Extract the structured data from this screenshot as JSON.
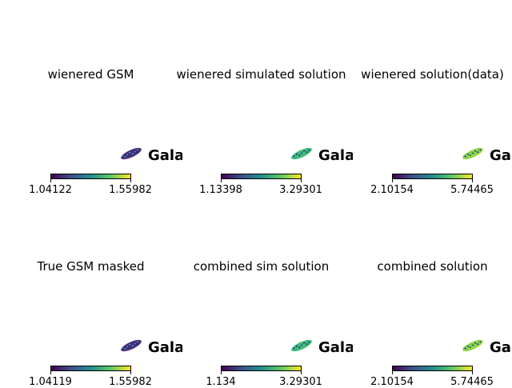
{
  "chart_data": [
    {
      "type": "heatmap",
      "title": "wienered GSM",
      "overlay_text": "Gala",
      "colormap": "viridis",
      "colorbar": {
        "min_label": "1.04122",
        "max_label": "1.55982",
        "min": 1.04122,
        "max": 1.55982
      },
      "dominant_color": "#46327e"
    },
    {
      "type": "heatmap",
      "title": "wienered simulated solution",
      "overlay_text": "Gala",
      "colormap": "viridis",
      "colorbar": {
        "min_label": "1.13398",
        "max_label": "3.29301",
        "min": 1.13398,
        "max": 3.29301
      },
      "dominant_color": "#3cbb75"
    },
    {
      "type": "heatmap",
      "title": "wienered solution(data)",
      "overlay_text": "Gala",
      "colormap": "viridis",
      "colorbar": {
        "min_label": "2.10154",
        "max_label": "5.74465",
        "min": 2.10154,
        "max": 5.74465
      },
      "dominant_color": "#8fd744"
    },
    {
      "type": "heatmap",
      "title": "True GSM masked",
      "overlay_text": "Gala",
      "colormap": "viridis",
      "colorbar": {
        "min_label": "1.04119",
        "max_label": "1.55982",
        "min": 1.04119,
        "max": 1.55982
      },
      "dominant_color": "#46327e"
    },
    {
      "type": "heatmap",
      "title": "combined sim solution",
      "overlay_text": "Gala",
      "colormap": "viridis",
      "colorbar": {
        "min_label": "1.134",
        "max_label": "3.29301",
        "min": 1.134,
        "max": 3.29301
      },
      "dominant_color": "#3cbb75"
    },
    {
      "type": "heatmap",
      "title": "combined solution",
      "overlay_text": "Gala",
      "colormap": "viridis",
      "colorbar": {
        "min_label": "2.10154",
        "max_label": "5.74465",
        "min": 2.10154,
        "max": 5.74465
      },
      "dominant_color": "#8fd744"
    }
  ]
}
